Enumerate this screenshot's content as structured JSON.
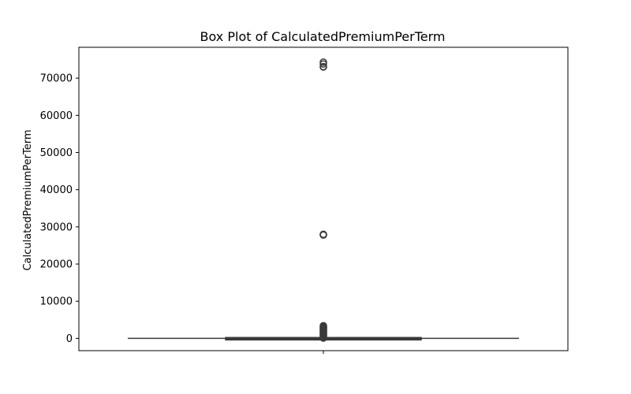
{
  "chart_data": {
    "type": "box",
    "title": "Box Plot of CalculatedPremiumPerTerm",
    "xlabel": "",
    "ylabel": "CalculatedPremiumPerTerm",
    "ylim": [
      -3300,
      78300
    ],
    "yticks": [
      0,
      10000,
      20000,
      30000,
      40000,
      50000,
      60000,
      70000
    ],
    "ytick_labels": [
      "0",
      "10000",
      "20000",
      "30000",
      "40000",
      "50000",
      "60000",
      "70000"
    ],
    "grid": false,
    "box": {
      "q1": 0,
      "median": 0,
      "q3": 20,
      "whisker_low": 0,
      "whisker_high": 40,
      "color": "#3a3a3a"
    },
    "outliers": [
      74300,
      73800,
      73100,
      73000,
      28000,
      27900,
      27800,
      3400,
      3200,
      3000,
      2800,
      2600,
      2400,
      2200,
      2000,
      1800,
      1600,
      1400,
      1200,
      1000,
      800,
      600,
      400,
      200,
      100
    ]
  }
}
